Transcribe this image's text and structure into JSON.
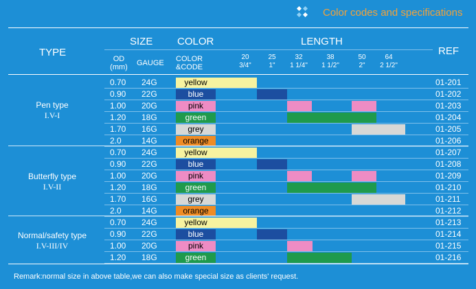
{
  "header": {
    "title": "Color codes and specifications",
    "icon": "diamond-dots-icon",
    "accent_color": "#f2a23a"
  },
  "columns": {
    "type": "TYPE",
    "size": "SIZE",
    "color": "COLOR",
    "length": "LENGTH",
    "ref": "REF",
    "od_line1": "OD",
    "od_line2": "(mm)",
    "gauge": "GAUGE",
    "color_code_line1": "COLOR",
    "color_code_line2": "&CODE",
    "lengths": [
      {
        "mm": "20",
        "inch": "3/4\""
      },
      {
        "mm": "25",
        "inch": "1\""
      },
      {
        "mm": "32",
        "inch": "1 1/4\""
      },
      {
        "mm": "38",
        "inch": "1 1/2\""
      },
      {
        "mm": "50",
        "inch": "2\""
      },
      {
        "mm": "64",
        "inch": "2 1/2\""
      }
    ]
  },
  "colors": {
    "yellow": "#f7f3a0",
    "blue": "#1c4ea0",
    "pink": "#ee8cc4",
    "green": "#1f9a4c",
    "grey": "#d7d8d6",
    "orange": "#ef8c25"
  },
  "groups": [
    {
      "type_name": "Pen type",
      "type_code": "I.V-I"
    },
    {
      "type_name": "Butterfly type",
      "type_code": "I.V-II"
    },
    {
      "type_name": "Normal/safety type",
      "type_code": "I.V-III/IV"
    }
  ],
  "rows": [
    {
      "od": "0.70",
      "gauge": "24G",
      "color": "yellow",
      "color_key": "yellow",
      "text_color": "#000000",
      "ref": "01-201",
      "bar_start": 0,
      "bar_end": 1
    },
    {
      "od": "0.90",
      "gauge": "22G",
      "color": "blue",
      "color_key": "blue",
      "text_color": "#ffffff",
      "ref": "01-202",
      "bar_start": 1,
      "bar_end": 2
    },
    {
      "od": "1.00",
      "gauge": "20G",
      "color": "pink",
      "color_key": "pink",
      "text_color": "#000000",
      "ref": "01-203",
      "bar_start": 2,
      "bar_end": 5
    },
    {
      "od": "1.20",
      "gauge": "18G",
      "color": "green",
      "color_key": "green",
      "text_color": "#ffffff",
      "ref": "01-204",
      "bar_start": 2,
      "bar_end": 5
    },
    {
      "od": "1.70",
      "gauge": "16G",
      "color": "grey",
      "color_key": "grey",
      "text_color": "#000000",
      "ref": "01-205",
      "bar_start": 4,
      "bar_end": 6
    },
    {
      "od": "2.0",
      "gauge": "14G",
      "color": "orange",
      "color_key": "orange",
      "text_color": "#000000",
      "ref": "01-206",
      "bar_start": -1,
      "bar_end": -1
    },
    {
      "od": "0.70",
      "gauge": "24G",
      "color": "yellow",
      "color_key": "yellow",
      "text_color": "#000000",
      "ref": "01-207",
      "bar_start": 0,
      "bar_end": 1
    },
    {
      "od": "0.90",
      "gauge": "22G",
      "color": "blue",
      "color_key": "blue",
      "text_color": "#ffffff",
      "ref": "01-208",
      "bar_start": 1,
      "bar_end": 2
    },
    {
      "od": "1.00",
      "gauge": "20G",
      "color": "pink",
      "color_key": "pink",
      "text_color": "#000000",
      "ref": "01-209",
      "bar_start": 2,
      "bar_end": 5
    },
    {
      "od": "1.20",
      "gauge": "18G",
      "color": "green",
      "color_key": "green",
      "text_color": "#ffffff",
      "ref": "01-210",
      "bar_start": 2,
      "bar_end": 5
    },
    {
      "od": "1.70",
      "gauge": "16G",
      "color": "grey",
      "color_key": "grey",
      "text_color": "#000000",
      "ref": "01-211",
      "bar_start": 4,
      "bar_end": 6
    },
    {
      "od": "2.0",
      "gauge": "14G",
      "color": "orange",
      "color_key": "orange",
      "text_color": "#000000",
      "ref": "01-212",
      "bar_start": -1,
      "bar_end": -1
    },
    {
      "od": "0.70",
      "gauge": "24G",
      "color": "yellow",
      "color_key": "yellow",
      "text_color": "#000000",
      "ref": "01-213",
      "bar_start": 0,
      "bar_end": 1
    },
    {
      "od": "0.90",
      "gauge": "22G",
      "color": "blue",
      "color_key": "blue",
      "text_color": "#ffffff",
      "ref": "01-214",
      "bar_start": 1,
      "bar_end": 2
    },
    {
      "od": "1.00",
      "gauge": "20G",
      "color": "pink",
      "color_key": "pink",
      "text_color": "#000000",
      "ref": "01-215",
      "bar_start": 2,
      "bar_end": 3
    },
    {
      "od": "1.20",
      "gauge": "18G",
      "color": "green",
      "color_key": "green",
      "text_color": "#ffffff",
      "ref": "01-216",
      "bar_start": 2,
      "bar_end": 4
    }
  ],
  "remark": "Remark:normal size in above table,we can also make special size as clients' request."
}
